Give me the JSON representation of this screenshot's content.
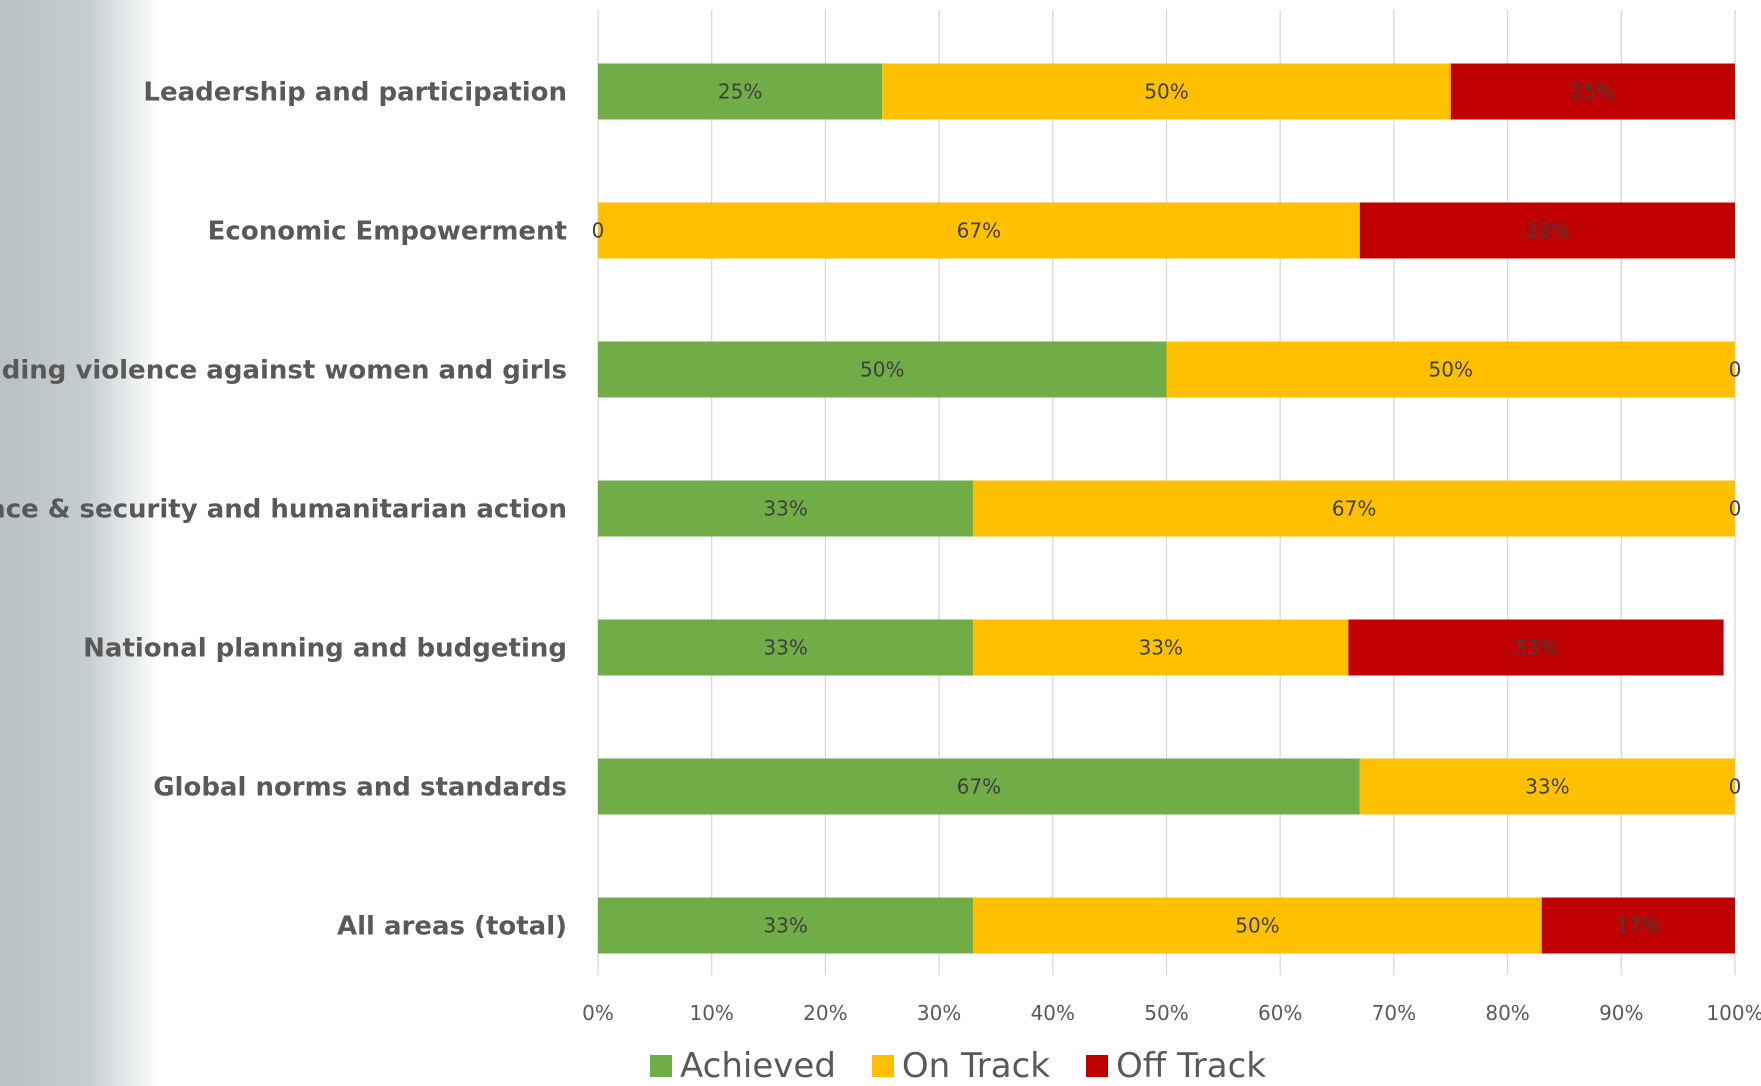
{
  "chart_data": {
    "type": "bar",
    "orientation": "horizontal",
    "stacked": true,
    "categories": [
      "Leadership and participation",
      "Economic Empowerment",
      "Ending violence against women and girls",
      "Peace & security and humanitarian action",
      "National planning and budgeting",
      "Global norms and standards",
      "All areas (total)"
    ],
    "series": [
      {
        "name": "Achieved",
        "color": "#70ad47",
        "values": [
          25,
          0,
          50,
          33,
          33,
          67,
          33
        ],
        "labels": [
          "25%",
          "0",
          "50%",
          "33%",
          "33%",
          "67%",
          "33%"
        ]
      },
      {
        "name": "On Track",
        "color": "#ffc000",
        "values": [
          50,
          67,
          50,
          67,
          33,
          33,
          50
        ],
        "labels": [
          "50%",
          "67%",
          "50%",
          "67%",
          "33%",
          "33%",
          "50%"
        ]
      },
      {
        "name": "Off Track",
        "color": "#c00000",
        "values": [
          25,
          33,
          0,
          0,
          33,
          0,
          17
        ],
        "labels": [
          "25%",
          "33%",
          "0",
          "0",
          "33%",
          "0",
          "17%"
        ]
      }
    ],
    "xlim": [
      0,
      100
    ],
    "xticks": [
      "0%",
      "10%",
      "20%",
      "30%",
      "40%",
      "50%",
      "60%",
      "70%",
      "80%",
      "90%",
      "100%"
    ],
    "grid": "vertical",
    "legend_position": "bottom"
  }
}
